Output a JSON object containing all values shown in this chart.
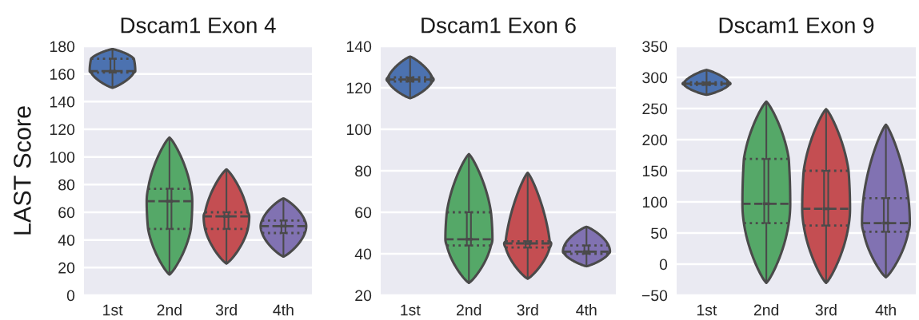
{
  "chart_data": [
    {
      "type": "box",
      "title": "Dscam1 Exon 4",
      "ylabel": "LAST Score",
      "categories": [
        "1st",
        "2nd",
        "3rd",
        "4th"
      ],
      "colors": [
        "#4c72b0",
        "#55a868",
        "#c44e52",
        "#8172b2"
      ],
      "ylim": [
        0,
        180
      ],
      "yticks": [
        0,
        20,
        40,
        60,
        80,
        100,
        120,
        140,
        160,
        180
      ],
      "grid": "y",
      "boxes": [
        {
          "low": 150,
          "q1": 161,
          "median": 162,
          "q3": 171,
          "high": 178
        },
        {
          "low": 15,
          "q1": 48,
          "median": 68,
          "q3": 77,
          "high": 114
        },
        {
          "low": 23,
          "q1": 48,
          "median": 57,
          "q3": 60,
          "high": 91
        },
        {
          "low": 28,
          "q1": 45,
          "median": 50,
          "q3": 54,
          "high": 70
        }
      ]
    },
    {
      "type": "box",
      "title": "Dscam1 Exon 6",
      "categories": [
        "1st",
        "2nd",
        "3rd",
        "4th"
      ],
      "colors": [
        "#4c72b0",
        "#55a868",
        "#c44e52",
        "#8172b2"
      ],
      "ylim": [
        20,
        140
      ],
      "yticks": [
        20,
        40,
        60,
        80,
        100,
        120,
        140
      ],
      "grid": "y",
      "boxes": [
        {
          "low": 115,
          "q1": 123,
          "median": 124,
          "q3": 125,
          "high": 135
        },
        {
          "low": 26,
          "q1": 44,
          "median": 47,
          "q3": 60,
          "high": 88
        },
        {
          "low": 28,
          "q1": 43,
          "median": 45,
          "q3": 46,
          "high": 79
        },
        {
          "low": 34,
          "q1": 40,
          "median": 41,
          "q3": 44,
          "high": 53
        }
      ]
    },
    {
      "type": "box",
      "title": "Dscam1 Exon 9",
      "categories": [
        "1st",
        "2nd",
        "3rd",
        "4th"
      ],
      "colors": [
        "#4c72b0",
        "#55a868",
        "#c44e52",
        "#8172b2"
      ],
      "ylim": [
        -50,
        350
      ],
      "yticks": [
        {
          "value": -50,
          "label": "−50"
        },
        0,
        50,
        100,
        150,
        200,
        250,
        300,
        350
      ],
      "grid": "y",
      "boxes": [
        {
          "low": 272,
          "q1": 288,
          "median": 290,
          "q3": 292,
          "high": 312
        },
        {
          "low": -30,
          "q1": 66,
          "median": 97,
          "q3": 169,
          "high": 261
        },
        {
          "low": -30,
          "q1": 62,
          "median": 89,
          "q3": 150,
          "high": 249
        },
        {
          "low": -21,
          "q1": 52,
          "median": 66,
          "q3": 106,
          "high": 224
        }
      ]
    }
  ]
}
